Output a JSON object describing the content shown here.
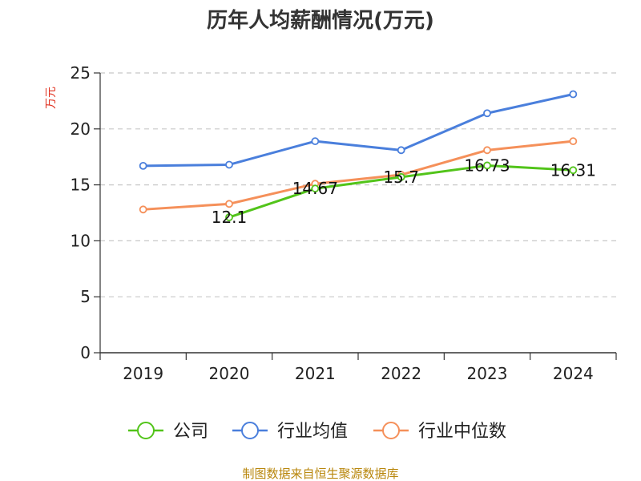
{
  "chart_data": {
    "type": "line",
    "title": "历年人均薪酬情况(万元)",
    "ylabel": "万元",
    "xlabel": "",
    "categories": [
      "2019",
      "2020",
      "2021",
      "2022",
      "2023",
      "2024"
    ],
    "ylim": [
      0,
      25
    ],
    "yticks": [
      0,
      5,
      10,
      15,
      20,
      25
    ],
    "grid": true,
    "legend_position": "bottom",
    "series": [
      {
        "name": "公司",
        "color": "#52c41a",
        "values": [
          null,
          12.1,
          14.67,
          15.7,
          16.73,
          16.31
        ],
        "labels": [
          "",
          "12.1",
          "14.67",
          "15.7",
          "16.73",
          "16.31"
        ]
      },
      {
        "name": "行业均值",
        "color": "#4a7fdc",
        "values": [
          16.7,
          16.8,
          18.9,
          18.1,
          21.4,
          23.1
        ]
      },
      {
        "name": "行业中位数",
        "color": "#f5905a",
        "values": [
          12.8,
          13.3,
          15.1,
          15.9,
          18.1,
          18.9
        ]
      }
    ]
  },
  "source": "制图数据来自恒生聚源数据库"
}
